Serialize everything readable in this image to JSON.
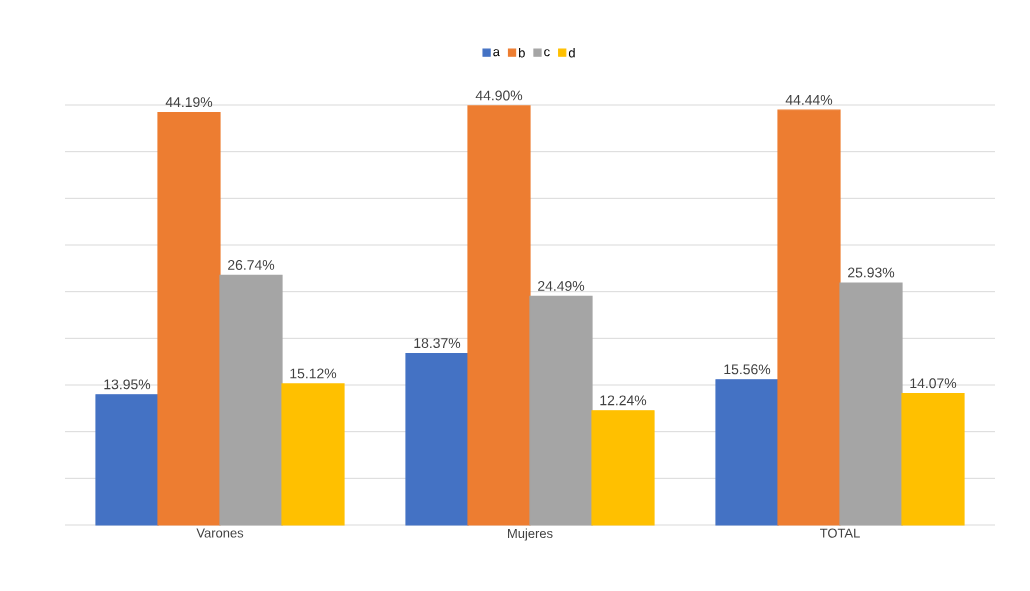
{
  "chart_data": {
    "type": "bar",
    "categories": [
      "Varones",
      "Mujeres",
      "TOTAL"
    ],
    "series": [
      {
        "name": "a",
        "color": "#4472c4",
        "values": [
          13.95,
          18.37,
          15.56
        ],
        "value_labels": [
          "13.95%",
          "18.37%",
          "15.56%"
        ]
      },
      {
        "name": "b",
        "color": "#ed7d31",
        "values": [
          44.19,
          44.9,
          44.44
        ],
        "value_labels": [
          "44.19%",
          "44.90%",
          "44.44%"
        ]
      },
      {
        "name": "c",
        "color": "#a5a5a5",
        "values": [
          26.74,
          24.49,
          25.93
        ],
        "value_labels": [
          "26.74%",
          "24.49%",
          "25.93%"
        ]
      },
      {
        "name": "d",
        "color": "#ffc000",
        "values": [
          15.12,
          12.24,
          14.07
        ],
        "value_labels": [
          "15.12%",
          "12.24%",
          "14.07%"
        ]
      }
    ],
    "ylim": [
      0,
      45
    ],
    "yticks": [
      {
        "value": 0,
        "label": null
      },
      {
        "value": 5,
        "label": null
      },
      {
        "value": 10,
        "label": null
      },
      {
        "value": 15,
        "label": null
      },
      {
        "value": 20,
        "label": null
      },
      {
        "value": 25,
        "label": null
      },
      {
        "value": 30,
        "label": null
      },
      {
        "value": 35,
        "label": null
      },
      {
        "value": 40,
        "label": null
      },
      {
        "value": 45,
        "label": null
      }
    ],
    "tick_labels": "x",
    "grid": "y",
    "legend": "top"
  }
}
